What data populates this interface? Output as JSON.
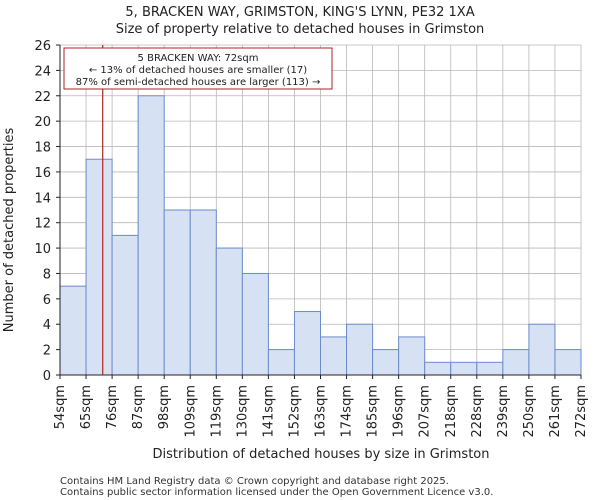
{
  "chart_data": {
    "type": "bar",
    "title_line1": "5, BRACKEN WAY, GRIMSTON, KING'S LYNN, PE32 1XA",
    "title_line2": "Size of property relative to detached houses in Grimston",
    "xlabel": "Distribution of detached houses by size in Grimston",
    "ylabel": "Number of detached properties",
    "bin_edges": [
      "54sqm",
      "65sqm",
      "76sqm",
      "87sqm",
      "98sqm",
      "109sqm",
      "119sqm",
      "130sqm",
      "141sqm",
      "152sqm",
      "163sqm",
      "174sqm",
      "185sqm",
      "196sqm",
      "207sqm",
      "218sqm",
      "228sqm",
      "239sqm",
      "250sqm",
      "261sqm",
      "272sqm"
    ],
    "values": [
      7,
      17,
      11,
      22,
      13,
      13,
      10,
      8,
      2,
      5,
      3,
      4,
      2,
      3,
      1,
      1,
      1,
      2,
      4,
      2
    ],
    "ylim": [
      0,
      26
    ],
    "yticks": [
      0,
      2,
      4,
      6,
      8,
      10,
      12,
      14,
      16,
      18,
      20,
      22,
      24,
      26
    ],
    "grid": true,
    "colors": {
      "bar_fill": "#d7e1f4",
      "bar_edge": "#6b8cc9",
      "marker": "#b22222"
    },
    "marker": {
      "value_sqm": 72,
      "bin_position": 1.64
    },
    "annotation": {
      "line1": "5 BRACKEN WAY: 72sqm",
      "line2": "← 13% of detached houses are smaller (17)",
      "line3": "87% of semi-detached houses are larger (113) →"
    }
  },
  "footer": {
    "line1": "Contains HM Land Registry data © Crown copyright and database right 2025.",
    "line2": "Contains public sector information licensed under the Open Government Licence v3.0."
  }
}
